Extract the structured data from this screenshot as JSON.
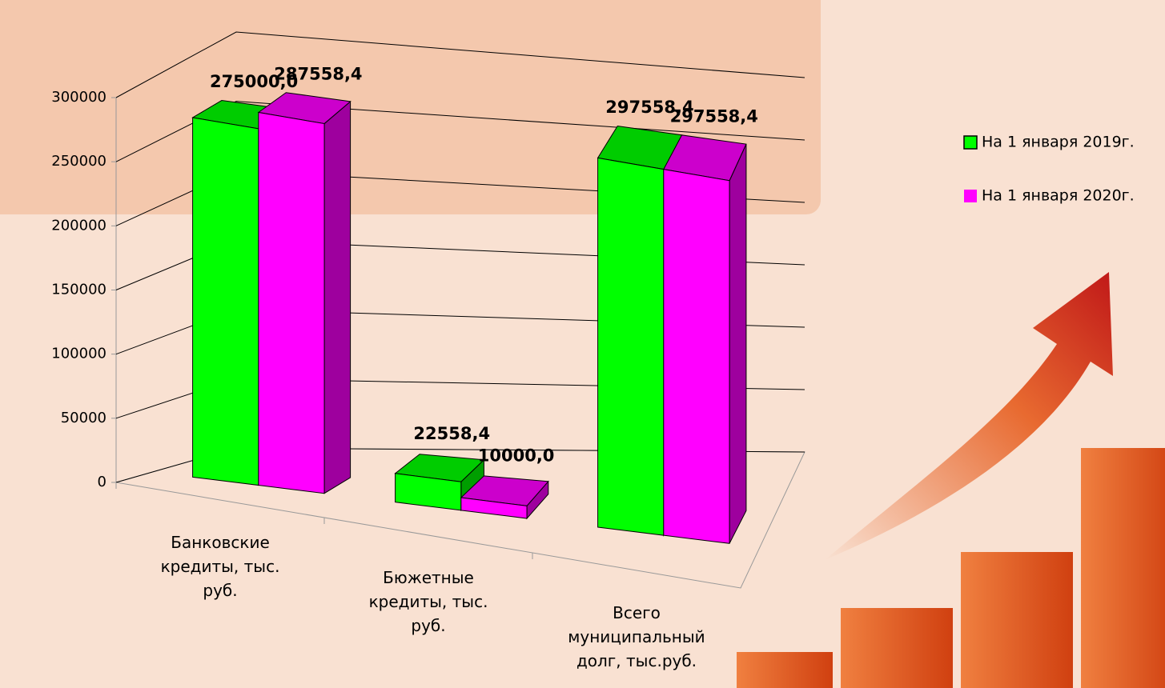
{
  "chart_data": {
    "type": "bar3d",
    "categories": [
      "Банковские кредиты, тыс. руб.",
      "Бюжетные кредиты, тыс. руб.",
      "Всего муниципальный долг, тыс.руб."
    ],
    "series": [
      {
        "name": "На 1 января 2019г.",
        "color": "#00ff00",
        "values": [
          275000.0,
          22558.4,
          297558.4
        ],
        "value_labels": [
          "275000,0",
          "22558,4",
          "297558,4"
        ]
      },
      {
        "name": "На 1 января 2020г.",
        "color": "#ff00ff",
        "values": [
          287558.4,
          10000.0,
          297558.4
        ],
        "value_labels": [
          "287558,4",
          "10000,0",
          "297558,4"
        ]
      }
    ],
    "ylim": [
      0,
      300000
    ],
    "yticks": [
      0,
      50000,
      100000,
      150000,
      200000,
      250000,
      300000
    ],
    "grid": true,
    "legend": "right"
  }
}
